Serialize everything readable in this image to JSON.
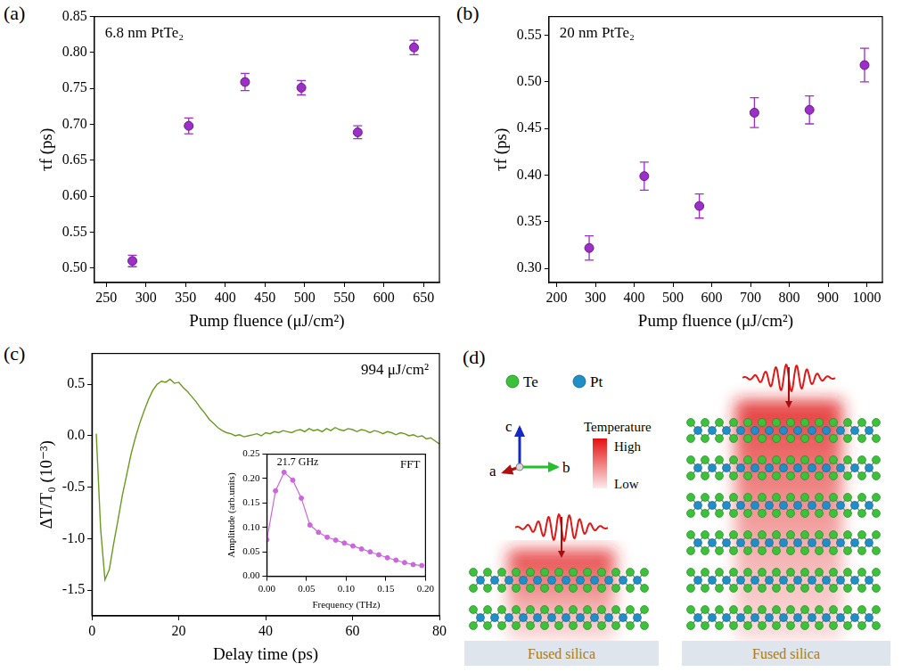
{
  "chart_data": [
    {
      "panel_label": "(a)",
      "type": "scatter",
      "annotation": "6.8 nm PtTe₂",
      "x_label": "Pump fluence (μJ/cm²)",
      "y_label": "τf (ps)",
      "color": "#9b2fc6",
      "marker": "circle",
      "x": [
        283,
        354,
        425,
        496,
        567,
        638
      ],
      "values": [
        0.51,
        0.698,
        0.759,
        0.751,
        0.689,
        0.807
      ],
      "errors": [
        0.008,
        0.011,
        0.012,
        0.01,
        0.009,
        0.01
      ],
      "xlim": [
        235,
        670
      ],
      "ylim": [
        0.48,
        0.85
      ],
      "xticks": [
        250,
        300,
        350,
        400,
        450,
        500,
        550,
        600,
        650
      ],
      "yticks": [
        {
          "value": 0.5,
          "label": "0.50"
        },
        0.55,
        {
          "value": 0.6,
          "label": "0.60"
        },
        0.65,
        {
          "value": 0.7,
          "label": "0.70"
        },
        0.75,
        {
          "value": 0.8,
          "label": "0.80"
        },
        0.85
      ]
    },
    {
      "panel_label": "(b)",
      "type": "scatter",
      "annotation": "20 nm PtTe₂",
      "x_label": "Pump fluence (μJ/cm²)",
      "y_label": "τf (ps)",
      "color": "#9b2fc6",
      "marker": "circle",
      "x": [
        284,
        426,
        568,
        710,
        852,
        994
      ],
      "values": [
        0.322,
        0.399,
        0.367,
        0.467,
        0.47,
        0.518
      ],
      "errors": [
        0.013,
        0.015,
        0.013,
        0.016,
        0.015,
        0.018
      ],
      "xlim": [
        180,
        1040
      ],
      "ylim": [
        0.285,
        0.57
      ],
      "xticks": [
        200,
        300,
        400,
        500,
        600,
        700,
        800,
        900,
        1000
      ],
      "yticks": [
        {
          "value": 0.3,
          "label": "0.30"
        },
        0.35,
        {
          "value": 0.4,
          "label": "0.40"
        },
        0.45,
        {
          "value": 0.5,
          "label": "0.50"
        },
        0.55
      ]
    },
    {
      "panel_label": "(c)",
      "type": "line",
      "annotation": "994 μJ/cm²",
      "x_label": "Delay time (ps)",
      "y_label": "ΔT/T₀ (10⁻³)",
      "color": "#6a9a1f",
      "x": [
        1,
        2,
        3,
        4,
        5,
        6,
        7,
        8,
        9,
        10,
        11,
        12,
        13,
        14,
        15,
        16,
        17,
        18,
        19,
        20,
        21,
        22,
        23,
        24,
        25,
        26,
        27,
        28,
        29,
        30,
        31,
        32,
        33,
        34,
        35,
        36,
        37,
        38,
        39,
        40,
        41,
        42,
        43,
        44,
        45,
        46,
        47,
        48,
        49,
        50,
        51,
        52,
        53,
        54,
        55,
        56,
        57,
        58,
        59,
        60,
        61,
        62,
        63,
        64,
        65,
        66,
        67,
        68,
        69,
        70,
        71,
        72,
        73,
        74,
        75,
        76,
        77,
        78,
        79,
        80
      ],
      "values": [
        0.02,
        -0.9,
        -1.4,
        -1.3,
        -1.05,
        -0.82,
        -0.58,
        -0.38,
        -0.18,
        -0.02,
        0.12,
        0.24,
        0.35,
        0.44,
        0.5,
        0.53,
        0.52,
        0.55,
        0.51,
        0.52,
        0.47,
        0.43,
        0.38,
        0.33,
        0.27,
        0.22,
        0.16,
        0.12,
        0.08,
        0.05,
        0.03,
        0.02,
        0.0,
        0.01,
        -0.01,
        0.0,
        0.01,
        0.02,
        0.0,
        0.03,
        0.02,
        0.04,
        0.03,
        0.05,
        0.04,
        0.03,
        0.05,
        0.06,
        0.04,
        0.07,
        0.05,
        0.06,
        0.04,
        0.07,
        0.05,
        0.08,
        0.06,
        0.05,
        0.07,
        0.06,
        0.04,
        0.06,
        0.05,
        0.03,
        0.05,
        0.04,
        0.02,
        0.04,
        0.03,
        0.01,
        0.03,
        0.02,
        0.0,
        0.01,
        -0.01,
        0.0,
        -0.03,
        -0.02,
        -0.05,
        -0.08
      ],
      "xlim": [
        0,
        80
      ],
      "ylim": [
        -1.75,
        0.8
      ],
      "xticks": [
        0,
        20,
        40,
        60,
        80
      ],
      "yticks": [
        -1.5,
        {
          "value": -1,
          "label": "-1.0"
        },
        -0.5,
        {
          "value": 0,
          "label": "0.0"
        },
        0.5
      ]
    },
    {
      "type": "line",
      "title": "FFT",
      "peak_label": "21.7 GHz",
      "x_label": "Frequency (THz)",
      "y_label": "Amplitude (arb.units)",
      "color": "#cc66dd",
      "marker": "circle",
      "x": [
        0.0,
        0.0109,
        0.0217,
        0.0326,
        0.0434,
        0.0543,
        0.0651,
        0.076,
        0.0868,
        0.0977,
        0.1085,
        0.1194,
        0.1302,
        0.1411,
        0.1519,
        0.1628,
        0.1736,
        0.1845,
        0.1953
      ],
      "values": [
        0.075,
        0.175,
        0.213,
        0.197,
        0.16,
        0.105,
        0.09,
        0.08,
        0.074,
        0.068,
        0.062,
        0.056,
        0.05,
        0.044,
        0.038,
        0.033,
        0.028,
        0.024,
        0.022
      ],
      "xlim": [
        0,
        0.2
      ],
      "ylim": [
        0,
        0.25
      ],
      "xticks": [
        {
          "value": 0,
          "label": "0.00"
        },
        0.05,
        {
          "value": 0.1,
          "label": "0.10"
        },
        0.15,
        {
          "value": 0.2,
          "label": "0.20"
        }
      ],
      "yticks": [
        {
          "value": 0,
          "label": "0.00"
        },
        0.05,
        {
          "value": 0.1,
          "label": "0.10"
        },
        0.15,
        {
          "value": 0.2,
          "label": "0.20"
        },
        0.25
      ]
    }
  ],
  "diagram": {
    "panel_label": "(d)",
    "atoms": [
      {
        "label": "Te",
        "color": "#3cc23a"
      },
      {
        "label": "Pt",
        "color": "#1f8fc8"
      }
    ],
    "axes": {
      "a": "a",
      "b": "b",
      "c": "c"
    },
    "temperature": {
      "title": "Temperature",
      "high": "High",
      "low": "Low"
    },
    "substrates": [
      "Fused silica",
      "Fused silica"
    ]
  }
}
